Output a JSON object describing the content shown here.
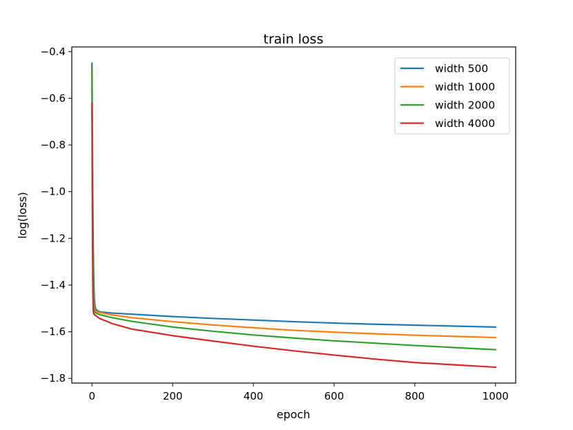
{
  "chart_data": {
    "type": "line",
    "title": "train loss",
    "xlabel": "epoch",
    "ylabel": "log(loss)",
    "xlim": [
      -50,
      1050
    ],
    "ylim": [
      -1.82,
      -0.38
    ],
    "xticks": [
      0,
      200,
      400,
      600,
      800,
      1000
    ],
    "xtick_labels": [
      "0",
      "200",
      "400",
      "600",
      "800",
      "1000"
    ],
    "yticks": [
      -0.4,
      -0.6,
      -0.8,
      -1.0,
      -1.2,
      -1.4,
      -1.6,
      -1.8
    ],
    "ytick_labels": [
      "−0.4",
      "−0.6",
      "−0.8",
      "−1.0",
      "−1.2",
      "−1.4",
      "−1.6",
      "−1.8"
    ],
    "grid": false,
    "legend_position": "top-right",
    "series": [
      {
        "name": "width 500",
        "color": "#1f77b4",
        "x": [
          0,
          1,
          2,
          3,
          4,
          5,
          6,
          8,
          10,
          15,
          20,
          50,
          100,
          200,
          300,
          400,
          500,
          600,
          700,
          800,
          900,
          1000
        ],
        "y": [
          -0.45,
          -0.75,
          -1.0,
          -1.2,
          -1.33,
          -1.41,
          -1.46,
          -1.495,
          -1.505,
          -1.512,
          -1.515,
          -1.52,
          -1.525,
          -1.535,
          -1.543,
          -1.55,
          -1.557,
          -1.563,
          -1.568,
          -1.572,
          -1.576,
          -1.58
        ]
      },
      {
        "name": "width 1000",
        "color": "#ff7f0e",
        "x": [
          0,
          1,
          2,
          3,
          4,
          5,
          6,
          8,
          10,
          15,
          20,
          50,
          100,
          200,
          300,
          400,
          500,
          600,
          700,
          800,
          900,
          1000
        ],
        "y": [
          -0.47,
          -0.85,
          -1.15,
          -1.35,
          -1.44,
          -1.48,
          -1.5,
          -1.51,
          -1.513,
          -1.516,
          -1.518,
          -1.528,
          -1.54,
          -1.557,
          -1.571,
          -1.583,
          -1.594,
          -1.602,
          -1.609,
          -1.615,
          -1.62,
          -1.625
        ]
      },
      {
        "name": "width 2000",
        "color": "#2ca02c",
        "x": [
          0,
          1,
          2,
          3,
          4,
          5,
          6,
          8,
          10,
          15,
          20,
          50,
          100,
          200,
          300,
          400,
          500,
          600,
          700,
          800,
          900,
          1000
        ],
        "y": [
          -0.47,
          -0.9,
          -1.25,
          -1.42,
          -1.49,
          -1.51,
          -1.516,
          -1.518,
          -1.52,
          -1.524,
          -1.527,
          -1.54,
          -1.556,
          -1.58,
          -1.598,
          -1.614,
          -1.627,
          -1.639,
          -1.649,
          -1.659,
          -1.668,
          -1.677
        ]
      },
      {
        "name": "width 4000",
        "color": "#d62728",
        "x": [
          0,
          1,
          2,
          3,
          4,
          5,
          6,
          8,
          10,
          15,
          20,
          50,
          100,
          200,
          300,
          400,
          500,
          600,
          700,
          800,
          900,
          1000
        ],
        "y": [
          -0.62,
          -1.05,
          -1.38,
          -1.5,
          -1.52,
          -1.525,
          -1.527,
          -1.529,
          -1.532,
          -1.538,
          -1.544,
          -1.565,
          -1.589,
          -1.617,
          -1.64,
          -1.662,
          -1.682,
          -1.7,
          -1.717,
          -1.732,
          -1.742,
          -1.752
        ]
      }
    ]
  }
}
